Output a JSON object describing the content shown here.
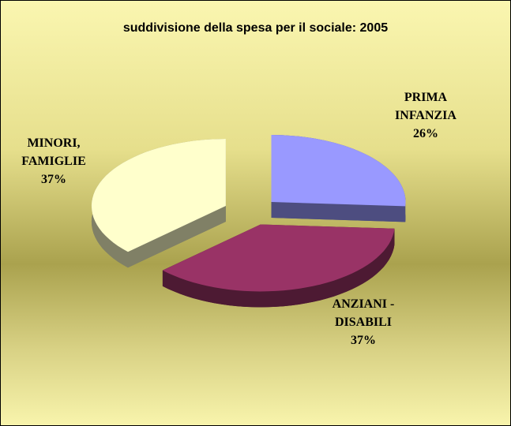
{
  "chart_data": {
    "type": "pie3d",
    "title": "suddivisione della spesa per il sociale: 2005",
    "categories": [
      "PRIMA INFANZIA",
      "ANZIANI - DISABILI",
      "MINORI, FAMIGLIE"
    ],
    "values": [
      26,
      37,
      37
    ],
    "value_labels": [
      "26%",
      "37%",
      "37%"
    ],
    "colors": [
      "#9999ff",
      "#993366",
      "#ffffcc"
    ]
  }
}
